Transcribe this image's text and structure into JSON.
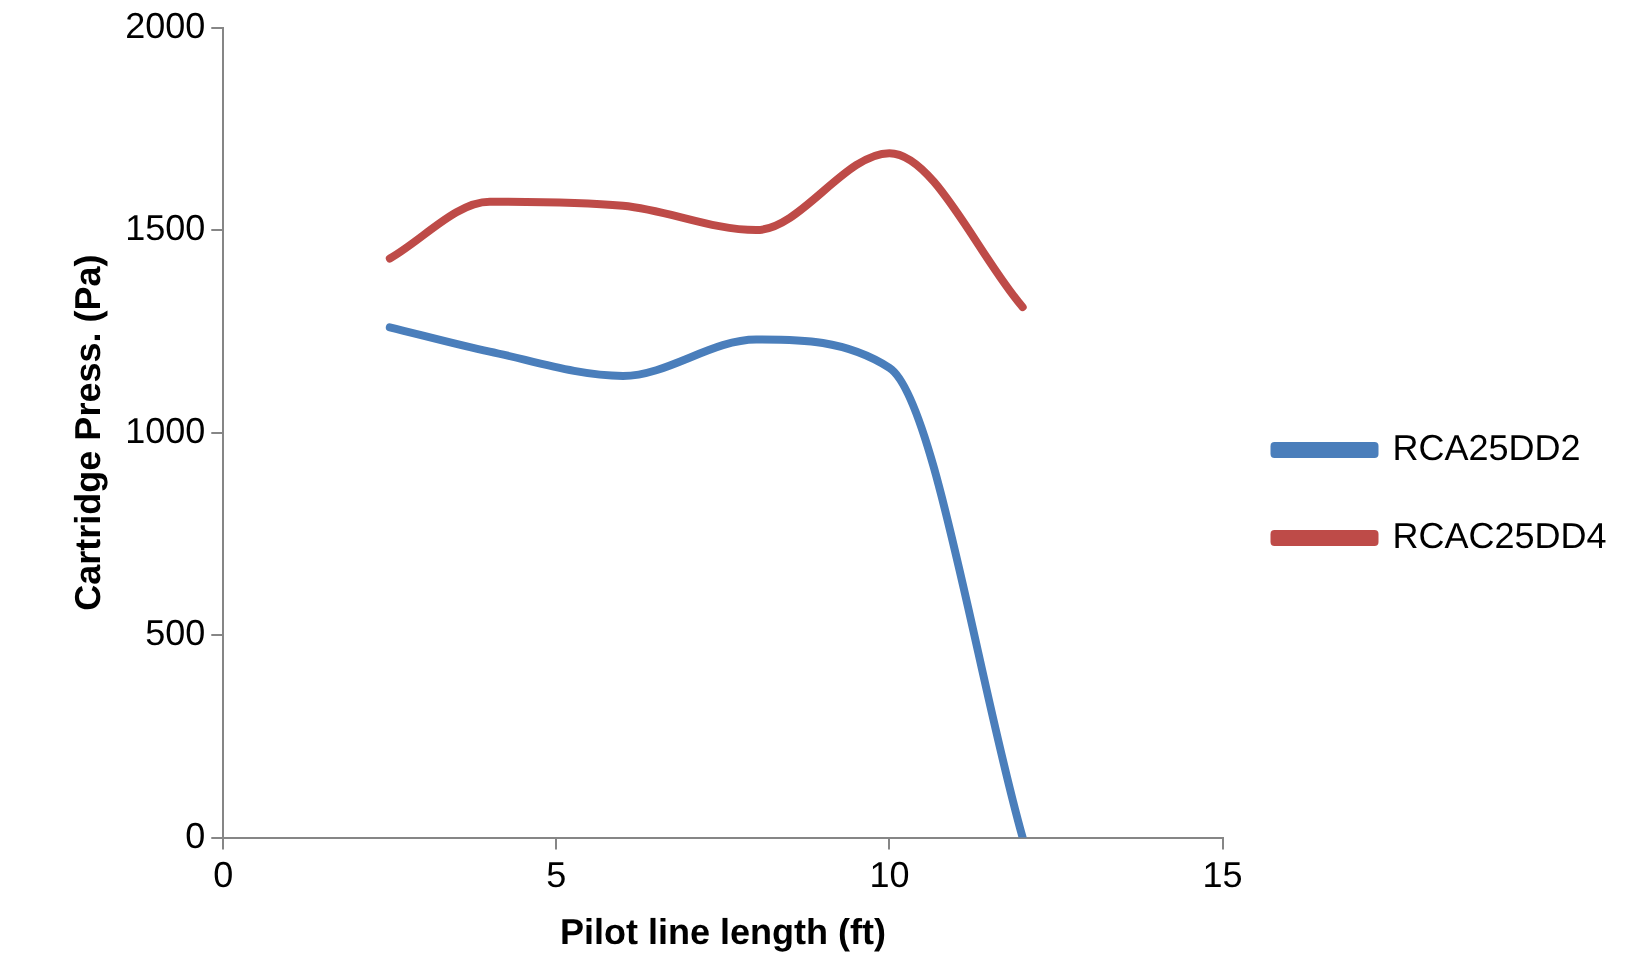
{
  "chart_data": {
    "type": "line",
    "xlabel": "Pilot line length (ft)",
    "ylabel": "Cartridge Press. (Pa)",
    "x": [
      2.5,
      4,
      6,
      8,
      10,
      12
    ],
    "series": [
      {
        "name": "RCA25DD2",
        "color": "#4a7ebb",
        "values": [
          1260,
          1200,
          1140,
          1230,
          1160,
          0
        ]
      },
      {
        "name": "RCAC25DD4",
        "color": "#be4b48",
        "values": [
          1430,
          1570,
          1560,
          1500,
          1690,
          1310
        ]
      }
    ],
    "xlim": [
      0,
      15
    ],
    "xticks": [
      0,
      5,
      10,
      15
    ],
    "ylim": [
      0,
      2000
    ],
    "yticks": [
      0,
      500,
      1000,
      1500,
      2000
    ],
    "grid": false,
    "legend": "right",
    "marker": "none",
    "line_style": "solid"
  }
}
